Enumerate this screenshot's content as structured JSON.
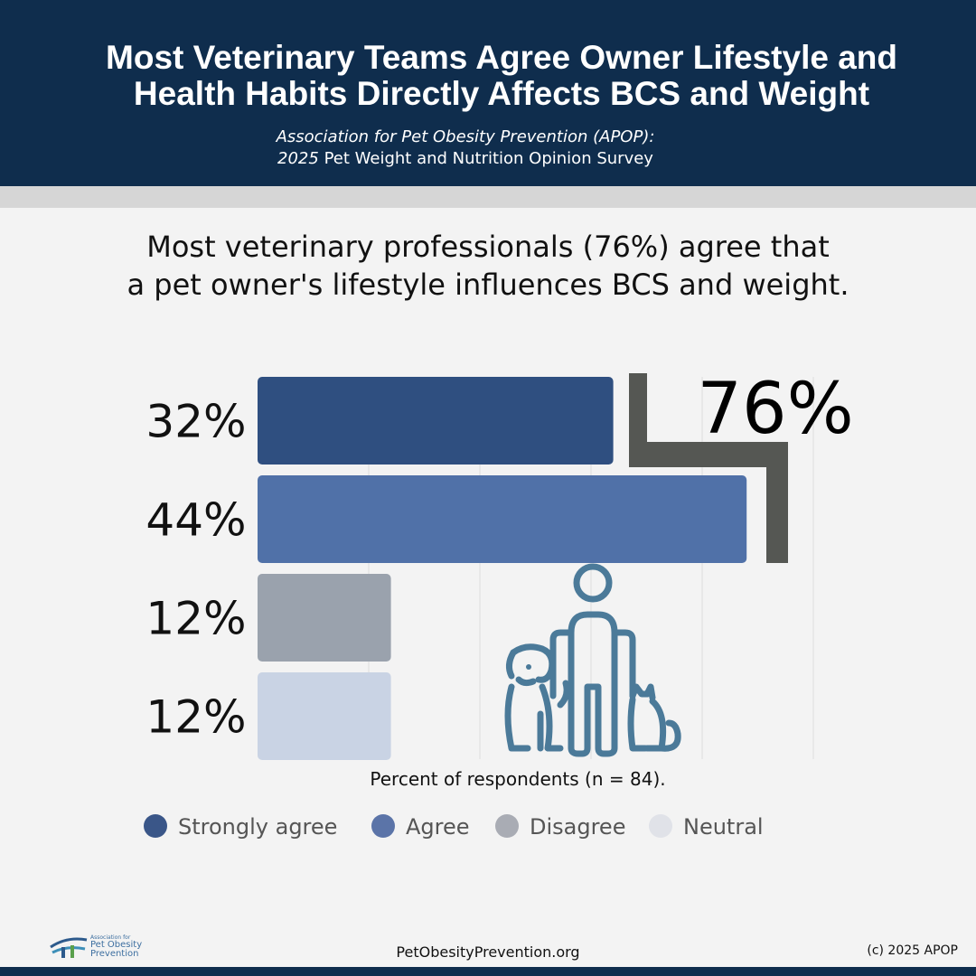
{
  "header": {
    "title_line1": "Most Veterinary Teams Agree Owner Lifestyle and",
    "title_line2": "Health Habits Directly Affects BCS and Weight",
    "subtitle_line1": "Association for Pet Obesity Prevention (APOP):",
    "subtitle_year": "2025",
    "subtitle_line2_rest": " Pet Weight and Nutrition Opinion Survey"
  },
  "headline": {
    "line1": "Most veterinary professionals (76%) agree that",
    "line2": "a pet owner's lifestyle influences BCS and weight."
  },
  "chart_data": {
    "type": "bar",
    "orientation": "horizontal",
    "categories": [
      "Strongly agree",
      "Agree",
      "Disagree",
      "Neutral"
    ],
    "values": [
      32,
      44,
      12,
      12
    ],
    "value_labels": [
      "32%",
      "44%",
      "12%",
      "12%"
    ],
    "colors": [
      "#2f4f80",
      "#5071a8",
      "#9aa2ad",
      "#c9d3e4"
    ],
    "legend_colors": [
      "#3a5688",
      "#5b74a8",
      "#a9acb4",
      "#e0e2e8"
    ],
    "xlabel": "Percent of respondents (n = 84).",
    "xlim": [
      0,
      50
    ],
    "grid": true,
    "legend_position": "bottom",
    "annotation": {
      "text": "76%",
      "spans_categories": [
        "Strongly agree",
        "Agree"
      ]
    }
  },
  "icons": {
    "illustration": "person-with-dog-and-cat-icon"
  },
  "footer": {
    "logo_small": "Association for",
    "logo_line1": "Pet Obesity",
    "logo_line2": "Prevention",
    "url": "PetObesityPrevention.org",
    "copyright": "(c) 2025 APOP"
  }
}
